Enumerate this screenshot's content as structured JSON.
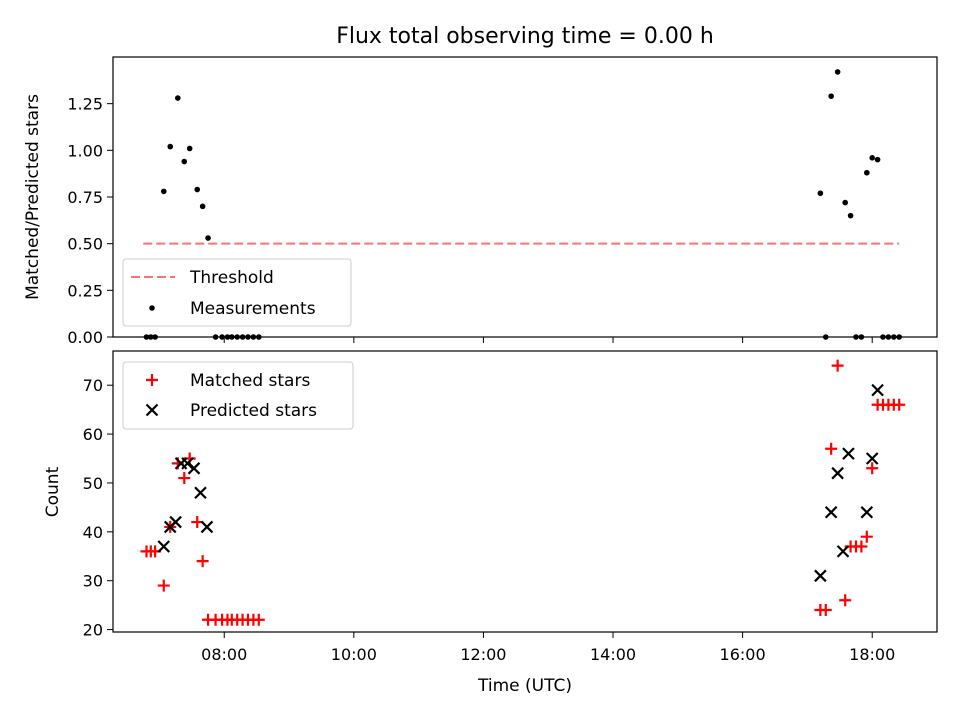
{
  "chart_data": [
    {
      "type": "scatter",
      "title": "Flux total observing time = 0.00 h",
      "xlabel": "",
      "ylabel": "Matched/Predicted stars",
      "ylim": [
        0,
        1.5
      ],
      "yticks": [
        "0.00",
        "0.25",
        "0.50",
        "0.75",
        "1.00",
        "1.25"
      ],
      "legend_position": "lower-left",
      "series": [
        {
          "name": "Threshold",
          "style": "dashed-line",
          "color": "#ff7070",
          "x": [
            "06:45",
            "18:25"
          ],
          "values": [
            0.5,
            0.5
          ]
        },
        {
          "name": "Measurements",
          "style": "dot",
          "color": "#000000",
          "x": [
            "06:48",
            "06:52",
            "06:56",
            "07:04",
            "07:10",
            "07:17",
            "07:23",
            "07:28",
            "07:35",
            "07:40",
            "07:45",
            "07:52",
            "07:58",
            "08:03",
            "08:07",
            "08:12",
            "08:17",
            "08:22",
            "08:27",
            "08:32",
            "17:12",
            "17:17",
            "17:22",
            "17:28",
            "17:35",
            "17:40",
            "17:45",
            "17:50",
            "17:55",
            "18:00",
            "18:05",
            "18:10",
            "18:15",
            "18:20",
            "18:25"
          ],
          "values": [
            0.0,
            0.0,
            0.0,
            0.78,
            1.02,
            1.28,
            0.94,
            1.01,
            0.79,
            0.7,
            0.53,
            0.0,
            0.0,
            0.0,
            0.0,
            0.0,
            0.0,
            0.0,
            0.0,
            0.0,
            0.77,
            0.0,
            1.29,
            1.42,
            0.72,
            0.65,
            0.0,
            0.0,
            0.88,
            0.96,
            0.95,
            0.0,
            0.0,
            0.0,
            0.0
          ]
        }
      ]
    },
    {
      "type": "scatter",
      "title": "",
      "xlabel": "Time (UTC)",
      "ylabel": "Count",
      "xlim": [
        "06:17",
        "19:00"
      ],
      "xticks": [
        "08:00",
        "10:00",
        "12:00",
        "14:00",
        "16:00",
        "18:00"
      ],
      "ylim": [
        19.5,
        77
      ],
      "yticks": [
        "20",
        "30",
        "40",
        "50",
        "60",
        "70"
      ],
      "legend_position": "upper-left",
      "series": [
        {
          "name": "Matched stars",
          "marker": "plus",
          "color": "#ff0000",
          "x": [
            "06:48",
            "06:52",
            "06:56",
            "07:04",
            "07:10",
            "07:17",
            "07:23",
            "07:28",
            "07:35",
            "07:40",
            "07:45",
            "07:52",
            "07:58",
            "08:03",
            "08:07",
            "08:12",
            "08:17",
            "08:22",
            "08:27",
            "08:32",
            "17:12",
            "17:17",
            "17:22",
            "17:28",
            "17:35",
            "17:40",
            "17:45",
            "17:50",
            "17:55",
            "18:00",
            "18:05",
            "18:10",
            "18:15",
            "18:20",
            "18:25"
          ],
          "values": [
            36,
            36,
            36,
            29,
            41,
            54,
            51,
            55,
            42,
            34,
            22,
            22,
            22,
            22,
            22,
            22,
            22,
            22,
            22,
            22,
            24,
            24,
            57,
            74,
            26,
            37,
            37,
            37,
            39,
            53,
            66,
            66,
            66,
            66,
            66
          ]
        },
        {
          "name": "Predicted stars",
          "marker": "x",
          "color": "#000000",
          "x": [
            "07:04",
            "07:10",
            "07:15",
            "07:20",
            "07:26",
            "07:32",
            "07:38",
            "07:44",
            "17:12",
            "17:22",
            "17:28",
            "17:33",
            "17:38",
            "17:55",
            "18:00",
            "18:05"
          ],
          "values": [
            37,
            41,
            42,
            54,
            54,
            53,
            48,
            41,
            31,
            44,
            52,
            36,
            56,
            44,
            55,
            69
          ]
        }
      ]
    }
  ]
}
